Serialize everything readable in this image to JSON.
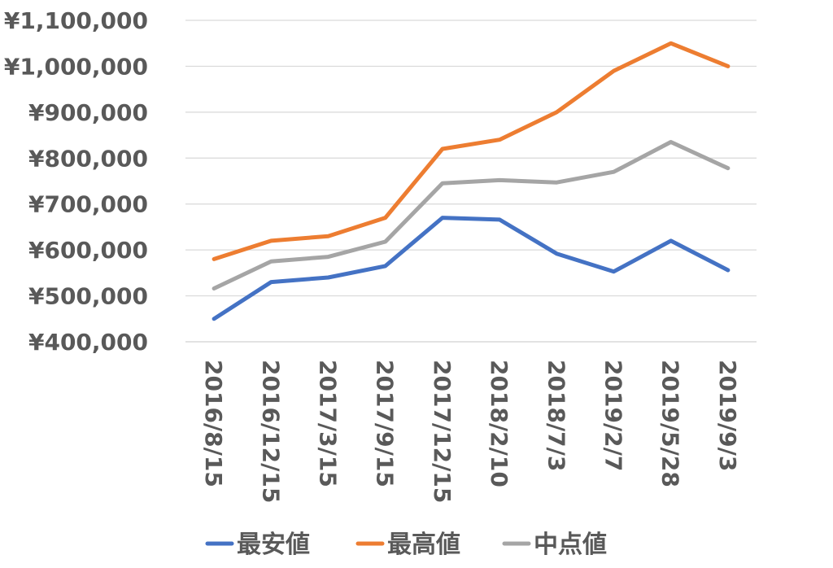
{
  "chart_data": {
    "type": "line",
    "title": "",
    "xlabel": "",
    "ylabel": "",
    "categories": [
      "2016/8/15",
      "2016/12/15",
      "2017/3/15",
      "2017/9/15",
      "2017/12/15",
      "2018/2/10",
      "2018/7/3",
      "2019/2/7",
      "2019/5/28",
      "2019/9/3"
    ],
    "ylim": [
      400000,
      1100000
    ],
    "yticks": [
      400000,
      500000,
      600000,
      700000,
      800000,
      900000,
      1000000,
      1100000
    ],
    "ytick_labels": [
      "¥400,000",
      "¥500,000",
      "¥600,000",
      "¥700,000",
      "¥800,000",
      "¥900,000",
      "¥1,000,000",
      "¥1,100,000"
    ],
    "grid": true,
    "legend_position": "bottom",
    "series": [
      {
        "name": "最安値",
        "color": "#4472C4",
        "values": [
          450000,
          530000,
          540000,
          565000,
          670000,
          666000,
          592000,
          553000,
          620000,
          556000
        ]
      },
      {
        "name": "最高値",
        "color": "#ED7D31",
        "values": [
          580000,
          620000,
          630000,
          670000,
          820000,
          840000,
          900000,
          990000,
          1050000,
          1000000
        ]
      },
      {
        "name": "中点値",
        "color": "#A5A5A5",
        "values": [
          516000,
          575000,
          585000,
          618000,
          745000,
          752000,
          747000,
          770000,
          835000,
          778000
        ]
      }
    ]
  }
}
